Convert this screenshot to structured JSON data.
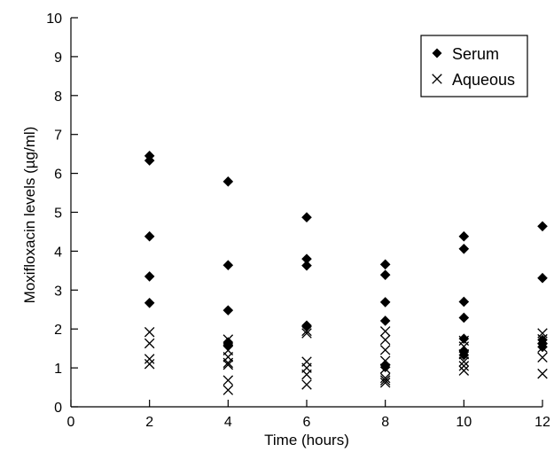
{
  "chart_data": {
    "type": "scatter",
    "title": "",
    "xlabel": "Time (hours)",
    "ylabel": "Moxifloxacin levels (µg/ml)",
    "xlim": [
      0,
      12
    ],
    "ylim": [
      0,
      10
    ],
    "xticks": [
      0,
      2,
      4,
      6,
      8,
      10,
      12
    ],
    "yticks": [
      0,
      1,
      2,
      3,
      4,
      5,
      6,
      7,
      8,
      9,
      10
    ],
    "grid": false,
    "legend_position": "top-right",
    "series": [
      {
        "name": "Serum",
        "marker": "diamond",
        "color": "#000000",
        "points": [
          {
            "x": 2,
            "y": 6.45
          },
          {
            "x": 2,
            "y": 6.33
          },
          {
            "x": 2,
            "y": 4.38
          },
          {
            "x": 2,
            "y": 3.35
          },
          {
            "x": 2,
            "y": 2.67
          },
          {
            "x": 4,
            "y": 5.79
          },
          {
            "x": 4,
            "y": 3.64
          },
          {
            "x": 4,
            "y": 2.48
          },
          {
            "x": 4,
            "y": 1.66
          },
          {
            "x": 4,
            "y": 1.58
          },
          {
            "x": 6,
            "y": 4.87
          },
          {
            "x": 6,
            "y": 3.8
          },
          {
            "x": 6,
            "y": 3.63
          },
          {
            "x": 6,
            "y": 2.09
          },
          {
            "x": 8,
            "y": 3.66
          },
          {
            "x": 8,
            "y": 3.39
          },
          {
            "x": 8,
            "y": 2.69
          },
          {
            "x": 8,
            "y": 2.21
          },
          {
            "x": 8,
            "y": 1.08
          },
          {
            "x": 8,
            "y": 1.02
          },
          {
            "x": 10,
            "y": 4.38
          },
          {
            "x": 10,
            "y": 4.06
          },
          {
            "x": 10,
            "y": 2.7
          },
          {
            "x": 10,
            "y": 2.29
          },
          {
            "x": 10,
            "y": 1.75
          },
          {
            "x": 10,
            "y": 1.41
          },
          {
            "x": 10,
            "y": 1.33
          },
          {
            "x": 12,
            "y": 4.64
          },
          {
            "x": 12,
            "y": 3.31
          },
          {
            "x": 12,
            "y": 1.72
          },
          {
            "x": 12,
            "y": 1.62
          },
          {
            "x": 12,
            "y": 1.54
          }
        ]
      },
      {
        "name": "Aqueous",
        "marker": "x",
        "color": "#000000",
        "points": [
          {
            "x": 2,
            "y": 1.92
          },
          {
            "x": 2,
            "y": 1.63
          },
          {
            "x": 2,
            "y": 1.23
          },
          {
            "x": 2,
            "y": 1.1
          },
          {
            "x": 4,
            "y": 1.73
          },
          {
            "x": 4,
            "y": 1.45
          },
          {
            "x": 4,
            "y": 1.28
          },
          {
            "x": 4,
            "y": 1.13
          },
          {
            "x": 4,
            "y": 1.08
          },
          {
            "x": 4,
            "y": 0.68
          },
          {
            "x": 4,
            "y": 0.43
          },
          {
            "x": 6,
            "y": 1.95
          },
          {
            "x": 6,
            "y": 1.89
          },
          {
            "x": 6,
            "y": 1.16
          },
          {
            "x": 6,
            "y": 1.0
          },
          {
            "x": 6,
            "y": 0.83
          },
          {
            "x": 6,
            "y": 0.57
          },
          {
            "x": 8,
            "y": 1.94
          },
          {
            "x": 8,
            "y": 1.72
          },
          {
            "x": 8,
            "y": 1.46
          },
          {
            "x": 8,
            "y": 1.18
          },
          {
            "x": 8,
            "y": 0.98
          },
          {
            "x": 8,
            "y": 0.74
          },
          {
            "x": 8,
            "y": 0.68
          },
          {
            "x": 8,
            "y": 0.62
          },
          {
            "x": 10,
            "y": 1.7
          },
          {
            "x": 10,
            "y": 1.55
          },
          {
            "x": 10,
            "y": 1.35
          },
          {
            "x": 10,
            "y": 1.16
          },
          {
            "x": 10,
            "y": 1.05
          },
          {
            "x": 10,
            "y": 0.93
          },
          {
            "x": 12,
            "y": 1.89
          },
          {
            "x": 12,
            "y": 1.74
          },
          {
            "x": 12,
            "y": 1.52
          },
          {
            "x": 12,
            "y": 1.27
          },
          {
            "x": 12,
            "y": 0.85
          }
        ]
      }
    ]
  }
}
